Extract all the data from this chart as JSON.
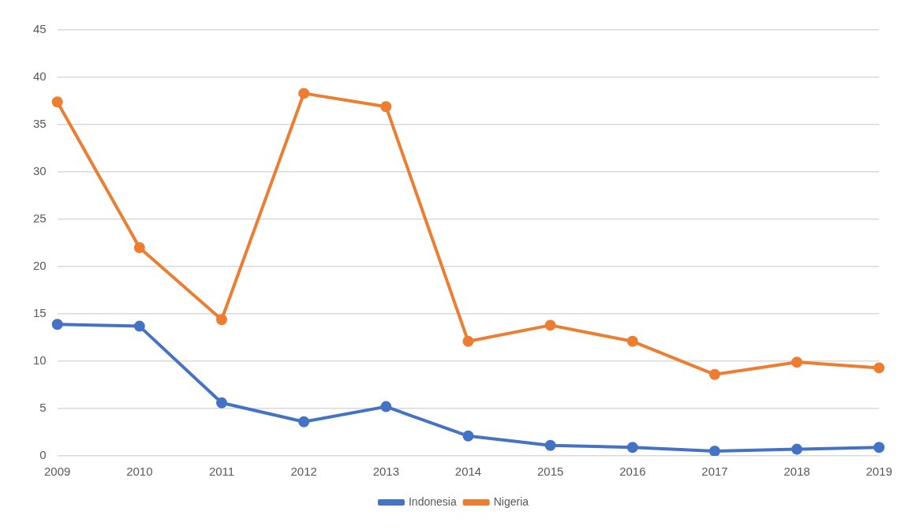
{
  "chart_data": {
    "type": "line",
    "categories": [
      "2009",
      "2010",
      "2011",
      "2012",
      "2013",
      "2014",
      "2015",
      "2016",
      "2017",
      "2018",
      "2019"
    ],
    "series": [
      {
        "name": "Indonesia",
        "color": "#4472c4",
        "values": [
          13.9,
          13.7,
          5.6,
          3.6,
          5.2,
          2.1,
          1.1,
          0.9,
          0.5,
          0.7,
          0.9
        ]
      },
      {
        "name": "Nigeria",
        "color": "#ed7d31",
        "values": [
          37.4,
          22,
          14.4,
          38.3,
          36.9,
          12.1,
          13.8,
          12.1,
          8.6,
          9.9,
          9.3
        ]
      }
    ],
    "ylim": [
      0,
      45
    ],
    "yticks": [
      0,
      5,
      10,
      15,
      20,
      25,
      30,
      35,
      40,
      45
    ],
    "grid": "y",
    "legend": "bottom",
    "marker": "circle",
    "line_style": "solid"
  }
}
